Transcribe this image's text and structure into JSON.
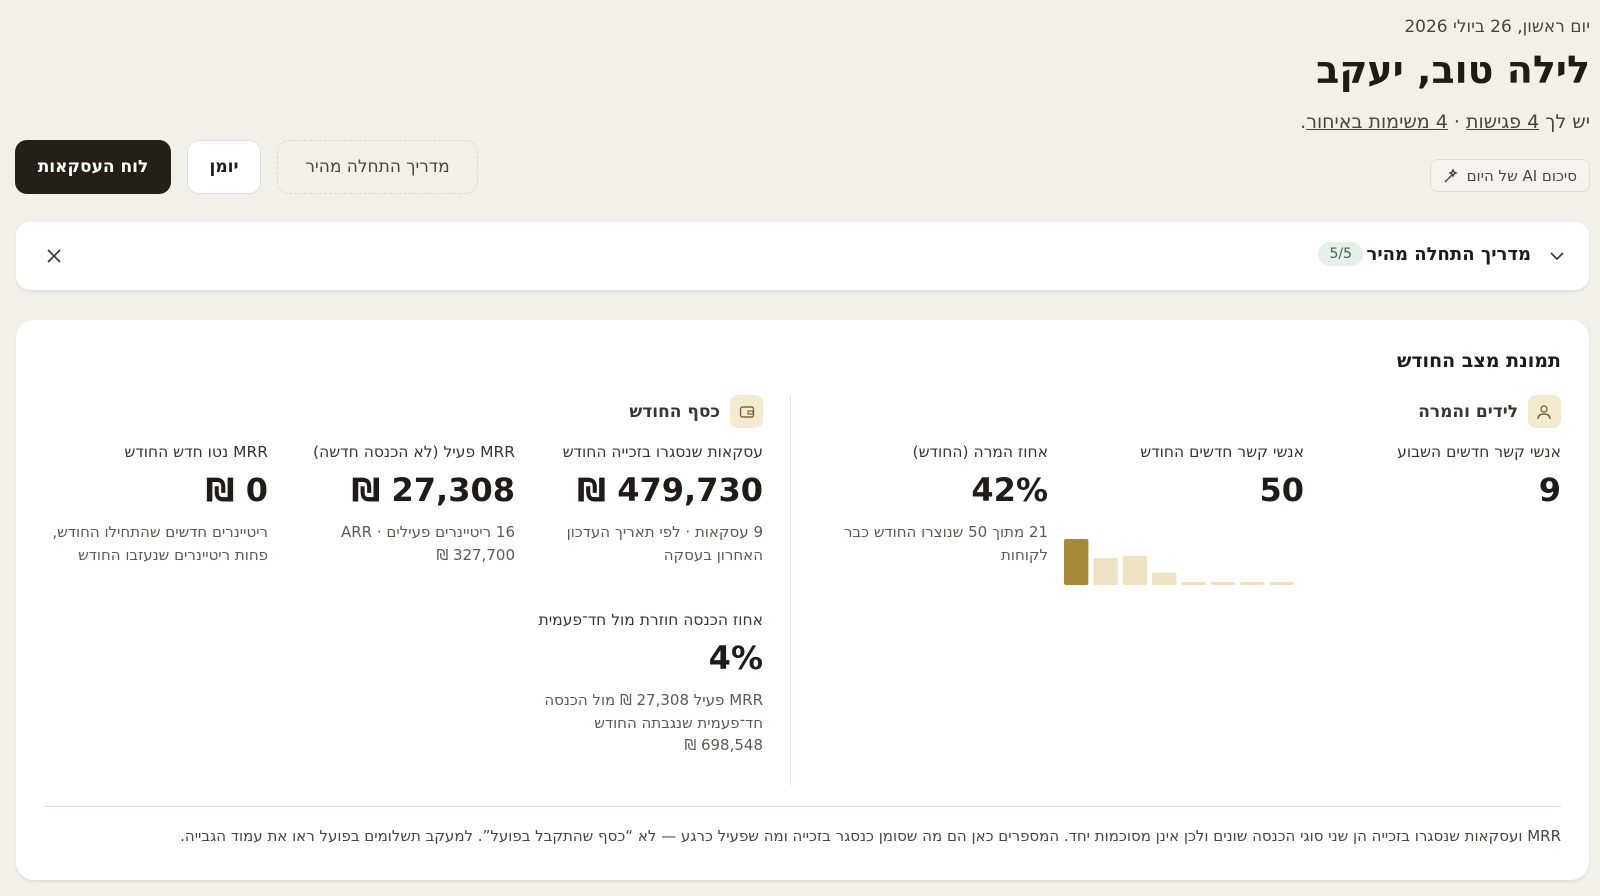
{
  "header": {
    "date": "יום ראשון, 26 ביולי 2026",
    "greeting": "לילה טוב, יעקב",
    "summary": {
      "prefix": "יש לך",
      "meetings": "4 פגישות",
      "separator": "·",
      "tasks": "4 משימות באיחור",
      "end": "."
    },
    "ai_button": "סיכום AI של היום"
  },
  "actions": [
    "לוח העסקאות",
    "יומן",
    "מדריך התחלה מהיר"
  ],
  "onboarding": {
    "title": "מדריך התחלה מהיר",
    "progress": "5/5"
  },
  "snapshot": {
    "title": "תמונת מצב החודש",
    "sections": [
      {
        "title": "לידים והמרה",
        "stats": [
          {
            "label": "אנשי קשר חדשים השבוע",
            "value": "9"
          },
          {
            "label": "אנשי קשר חדשים החודש",
            "value": "50",
            "chart": {
              "values": [
                9,
                5,
                5.5,
                2,
                0,
                0,
                0,
                0
              ]
            }
          },
          {
            "label": "אחוז המרה (החודש)",
            "value": "42%",
            "note": "21 מתוך 50 שנוצרו החודש כבר לקוחות"
          }
        ]
      },
      {
        "title": "כסף החודש",
        "stats": [
          {
            "label": "עסקאות שנסגרו בזכייה החודש",
            "value": "479,730 ₪",
            "note": "9 עסקאות · לפי תאריך העדכון האחרון בעסקה"
          },
          {
            "label": "MRR פעיל (לא הכנסה חדשה)",
            "value": "27,308 ₪",
            "note": "16 ריטיינרים פעילים · ARR ‏327,700 ₪"
          },
          {
            "label": "MRR נטו חדש החודש",
            "value": "0 ₪",
            "note": "ריטיינרים חדשים שהתחילו החודש, פחות ריטיינרים שנעזבו החודש"
          },
          {
            "label": "אחוז הכנסה חוזרת מול חד־פעמית",
            "value": "4%",
            "note": "MRR פעיל 27,308 ₪ מול הכנסה חד־פעמית שנגבתה החודש 698,548 ₪"
          }
        ]
      }
    ],
    "footnote": "MRR ועסקאות שנסגרו בזכייה הן שני סוגי הכנסה שונים ולכן אינן מסוכמות יחד. המספרים כאן הם מה שסומן כנסגר בזכייה ומה שפעיל כרגע — לא “כסף שהתקבל בפועל”. למעקב תשלומים בפועל ראו את עמוד הגבייה."
  }
}
